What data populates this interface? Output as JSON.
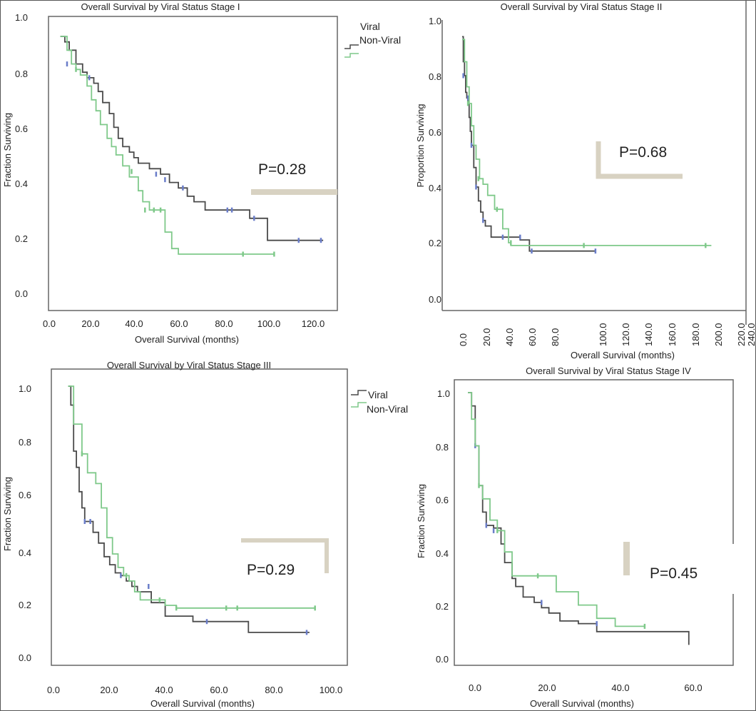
{
  "colors": {
    "viral": "#4a4a4a",
    "non_viral": "#7fc98a",
    "p_bar": "#d8d2c2",
    "censor_viral": "#6a7dc9"
  },
  "chart_data": [
    {
      "type": "line",
      "title": "Overall Survival by Viral Status Stage I",
      "xlabel": "Overall Survival (months)",
      "ylabel": "Fraction Surviving",
      "xlim": [
        0,
        130
      ],
      "ylim": [
        0,
        1.0
      ],
      "xticks": [
        0,
        20,
        40,
        60,
        80,
        100,
        120
      ],
      "xtick_labels": [
        "0.0",
        "20.0",
        "40.0",
        "60.0",
        "80.0",
        "100.0",
        "120.0"
      ],
      "yticks": [
        0,
        0.2,
        0.4,
        0.6,
        0.8,
        1.0
      ],
      "ytick_labels": [
        "0.0",
        "0.2",
        "0.4",
        "0.6",
        "0.8",
        "1.0"
      ],
      "p_value": "P=0.28",
      "legend": [
        "Viral",
        "Non-Viral"
      ],
      "series": [
        {
          "name": "Viral",
          "color_key": "viral",
          "x": [
            5,
            7,
            9,
            12,
            15,
            17,
            20,
            22,
            24,
            27,
            29,
            31,
            33,
            36,
            38,
            40,
            45,
            50,
            54,
            58,
            62,
            65,
            70,
            80,
            90,
            98,
            123
          ],
          "y": [
            0.93,
            0.91,
            0.88,
            0.83,
            0.8,
            0.78,
            0.76,
            0.73,
            0.69,
            0.65,
            0.6,
            0.56,
            0.53,
            0.51,
            0.49,
            0.47,
            0.45,
            0.43,
            0.4,
            0.38,
            0.35,
            0.33,
            0.3,
            0.3,
            0.27,
            0.19,
            0.19
          ],
          "censored": [
            [
              8,
              0.83
            ],
            [
              18,
              0.78
            ],
            [
              48,
              0.43
            ],
            [
              52,
              0.41
            ],
            [
              60,
              0.38
            ],
            [
              80,
              0.3
            ],
            [
              82,
              0.3
            ],
            [
              92,
              0.27
            ],
            [
              112,
              0.19
            ],
            [
              122,
              0.19
            ]
          ]
        },
        {
          "name": "Non-Viral",
          "color_key": "non_viral",
          "x": [
            5,
            8,
            10,
            12,
            14,
            17,
            19,
            21,
            23,
            26,
            28,
            30,
            33,
            36,
            40,
            42,
            45,
            48,
            52,
            55,
            58,
            101
          ],
          "y": [
            0.93,
            0.88,
            0.83,
            0.81,
            0.79,
            0.75,
            0.7,
            0.66,
            0.61,
            0.56,
            0.53,
            0.5,
            0.46,
            0.42,
            0.37,
            0.33,
            0.3,
            0.3,
            0.22,
            0.16,
            0.14,
            0.14
          ],
          "censored": [
            [
              12,
              0.81
            ],
            [
              37,
              0.44
            ],
            [
              43,
              0.3
            ],
            [
              47,
              0.3
            ],
            [
              50,
              0.3
            ],
            [
              87,
              0.14
            ],
            [
              101,
              0.14
            ]
          ]
        }
      ]
    },
    {
      "type": "line",
      "title": "Overall Survival by Viral Status Stage II",
      "xlabel": "Overall Survival (months)",
      "ylabel": "Proportion Surviving",
      "xlim": [
        -5,
        240
      ],
      "ylim": [
        0,
        1.0
      ],
      "xticks": [
        0,
        20,
        40,
        60,
        80,
        100,
        120,
        140,
        160,
        180,
        200,
        220,
        240
      ],
      "xtick_labels": [
        "0.0",
        "20.0",
        "40.0",
        "60.0",
        "80.0",
        "100.0",
        "120.0",
        "140.0",
        "160.0",
        "180.0",
        "200.0",
        "220.0",
        "240.0"
      ],
      "yticks": [
        0,
        0.2,
        0.4,
        0.6,
        0.8,
        1.0
      ],
      "ytick_labels": [
        "0.0",
        "0.2",
        "0.4",
        "0.6",
        "0.8",
        "1.0"
      ],
      "p_value": "P=0.68",
      "series": [
        {
          "name": "Viral",
          "color_key": "viral",
          "x": [
            0,
            1,
            2,
            3,
            4,
            5,
            6,
            7,
            8,
            10,
            12,
            14,
            16,
            18,
            20,
            25,
            30,
            40,
            50,
            58,
            115
          ],
          "y": [
            0.94,
            0.85,
            0.8,
            0.74,
            0.72,
            0.7,
            0.65,
            0.6,
            0.55,
            0.47,
            0.4,
            0.35,
            0.31,
            0.28,
            0.26,
            0.22,
            0.22,
            0.22,
            0.21,
            0.17,
            0.17
          ],
          "censored": [
            [
              1,
              0.8
            ],
            [
              5,
              0.72
            ],
            [
              8,
              0.55
            ],
            [
              12,
              0.4
            ],
            [
              18,
              0.28
            ],
            [
              35,
              0.22
            ],
            [
              50,
              0.22
            ],
            [
              60,
              0.17
            ],
            [
              115,
              0.17
            ]
          ]
        },
        {
          "name": "Non-Viral",
          "color_key": "non_viral",
          "x": [
            0,
            2,
            4,
            6,
            8,
            10,
            12,
            15,
            18,
            22,
            28,
            35,
            40,
            42,
            60,
            100,
            215
          ],
          "y": [
            0.93,
            0.85,
            0.76,
            0.7,
            0.62,
            0.55,
            0.5,
            0.43,
            0.41,
            0.37,
            0.32,
            0.25,
            0.2,
            0.19,
            0.19,
            0.19,
            0.19
          ],
          "censored": [
            [
              5,
              0.7
            ],
            [
              14,
              0.43
            ],
            [
              30,
              0.32
            ],
            [
              42,
              0.2
            ],
            [
              105,
              0.19
            ],
            [
              210,
              0.19
            ]
          ]
        }
      ]
    },
    {
      "type": "line",
      "title": "Overall Survival by Viral Status Stage III",
      "xlabel": "Overall Survival (months)",
      "ylabel": "Fraction Surviving",
      "xlim": [
        -5,
        105
      ],
      "ylim": [
        0,
        1.0
      ],
      "xticks": [
        0,
        20,
        40,
        60,
        80,
        100
      ],
      "xtick_labels": [
        "0.0",
        "20.0",
        "40.0",
        "60.0",
        "80.0",
        "100.0"
      ],
      "yticks": [
        0,
        0.2,
        0.4,
        0.6,
        0.8,
        1.0
      ],
      "ytick_labels": [
        "0.0",
        "0.2",
        "0.4",
        "0.6",
        "0.8",
        "1.0"
      ],
      "p_value": "P=0.29",
      "legend": [
        "Viral",
        "Non-Viral"
      ],
      "series": [
        {
          "name": "Viral",
          "color_key": "viral",
          "x": [
            5,
            6,
            7,
            8,
            9,
            10,
            11,
            12,
            14,
            16,
            18,
            20,
            22,
            24,
            26,
            28,
            30,
            35,
            40,
            50,
            70,
            92
          ],
          "y": [
            1.0,
            0.93,
            0.76,
            0.7,
            0.61,
            0.55,
            0.5,
            0.5,
            0.46,
            0.42,
            0.37,
            0.34,
            0.31,
            0.3,
            0.28,
            0.26,
            0.24,
            0.2,
            0.15,
            0.13,
            0.09,
            0.09
          ],
          "censored": [
            [
              11,
              0.5
            ],
            [
              13,
              0.5
            ],
            [
              24,
              0.3
            ],
            [
              34,
              0.26
            ],
            [
              55,
              0.13
            ],
            [
              91,
              0.09
            ]
          ]
        },
        {
          "name": "Non-Viral",
          "color_key": "non_viral",
          "x": [
            5,
            7,
            10,
            12,
            15,
            17,
            19,
            21,
            23,
            25,
            27,
            29,
            31,
            35,
            40,
            44,
            94
          ],
          "y": [
            1.0,
            0.86,
            0.75,
            0.68,
            0.64,
            0.55,
            0.44,
            0.38,
            0.33,
            0.3,
            0.28,
            0.24,
            0.21,
            0.21,
            0.19,
            0.18,
            0.18
          ],
          "censored": [
            [
              10,
              0.75
            ],
            [
              26,
              0.3
            ],
            [
              38,
              0.21
            ],
            [
              44,
              0.18
            ],
            [
              62,
              0.18
            ],
            [
              66,
              0.18
            ],
            [
              94,
              0.18
            ]
          ]
        }
      ]
    },
    {
      "type": "line",
      "title": "Overall Survival by Viral Status Stage IV",
      "xlabel": "Overall Survival (months)",
      "ylabel": "Fraction Surviving",
      "xlim": [
        -2,
        70
      ],
      "ylim": [
        0,
        1.0
      ],
      "xticks": [
        0,
        20,
        40,
        60
      ],
      "xtick_labels": [
        "0.0",
        "20.0",
        "40.0",
        "60.0"
      ],
      "yticks": [
        0,
        0.2,
        0.4,
        0.6,
        0.8,
        1.0
      ],
      "ytick_labels": [
        "0.0",
        "0.2",
        "0.4",
        "0.6",
        "0.8",
        "1.0"
      ],
      "p_value": "P=0.45",
      "series": [
        {
          "name": "Viral",
          "color_key": "viral",
          "x": [
            0,
            1,
            2,
            3,
            4,
            5,
            7,
            9,
            10,
            12,
            13,
            15,
            18,
            20,
            22,
            25,
            30,
            35,
            40,
            60
          ],
          "y": [
            1.0,
            0.95,
            0.8,
            0.65,
            0.55,
            0.5,
            0.49,
            0.43,
            0.36,
            0.3,
            0.27,
            0.23,
            0.21,
            0.19,
            0.17,
            0.14,
            0.13,
            0.1,
            0.1,
            0.05
          ],
          "censored": [
            [
              2,
              0.8
            ],
            [
              5,
              0.5
            ],
            [
              7,
              0.48
            ],
            [
              20,
              0.21
            ],
            [
              35,
              0.13
            ]
          ]
        },
        {
          "name": "Non-Viral",
          "color_key": "non_viral",
          "x": [
            0,
            1,
            2,
            3,
            4,
            6,
            8,
            10,
            12,
            15,
            20,
            24,
            28,
            30,
            35,
            40,
            48
          ],
          "y": [
            1.0,
            0.9,
            0.8,
            0.65,
            0.6,
            0.52,
            0.48,
            0.4,
            0.31,
            0.31,
            0.31,
            0.25,
            0.25,
            0.2,
            0.15,
            0.12,
            0.12
          ],
          "censored": [
            [
              3,
              0.65
            ],
            [
              8,
              0.48
            ],
            [
              19,
              0.31
            ],
            [
              48,
              0.12
            ]
          ]
        }
      ]
    }
  ]
}
